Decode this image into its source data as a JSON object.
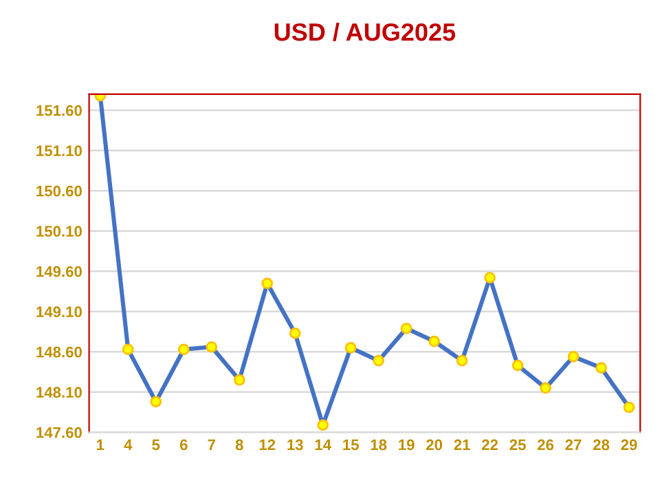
{
  "chart_data": {
    "type": "line",
    "title": "USD / AUG2025",
    "categories": [
      "1",
      "4",
      "5",
      "6",
      "7",
      "8",
      "12",
      "13",
      "14",
      "15",
      "18",
      "19",
      "20",
      "21",
      "22",
      "25",
      "26",
      "27",
      "28",
      "29"
    ],
    "series": [
      {
        "color": "#4472c4",
        "values": [
          151.78,
          148.63,
          147.98,
          148.63,
          148.66,
          148.25,
          149.45,
          148.83,
          147.69,
          148.65,
          148.49,
          148.89,
          148.73,
          148.49,
          149.52,
          148.43,
          148.15,
          148.54,
          148.4,
          147.91
        ]
      }
    ],
    "ylim": [
      147.6,
      151.8
    ],
    "yticks": [
      {
        "value": 147.6,
        "label": "147.60"
      },
      {
        "value": 148.1,
        "label": "148.10"
      },
      {
        "value": 148.6,
        "label": "148.60"
      },
      {
        "value": 149.1,
        "label": "149.10"
      },
      {
        "value": 149.6,
        "label": "149.60"
      },
      {
        "value": 150.1,
        "label": "150.10"
      },
      {
        "value": 150.6,
        "label": "150.60"
      },
      {
        "value": 151.1,
        "label": "151.10"
      },
      {
        "value": 151.6,
        "label": "151.60"
      }
    ],
    "grid": "y",
    "marker": "circle",
    "line_style": "solid"
  }
}
